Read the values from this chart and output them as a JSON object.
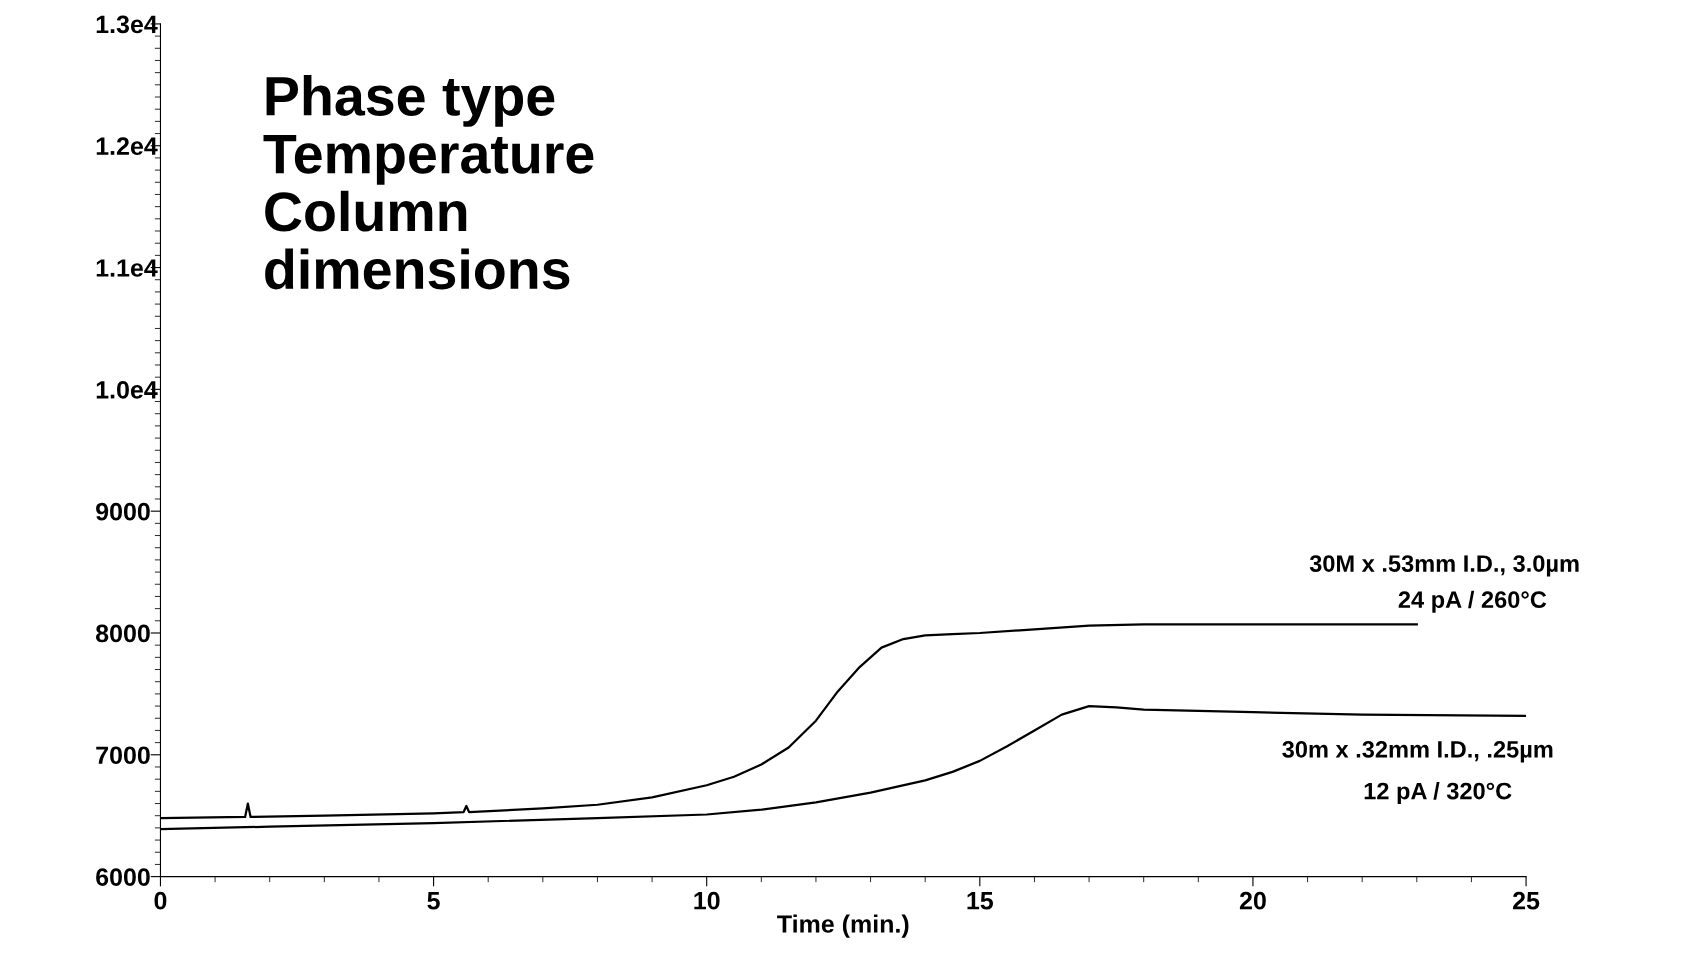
{
  "chart_data": {
    "type": "line",
    "xlabel": "Time (min.)",
    "xlim": [
      0,
      25
    ],
    "xticks": [
      0,
      5,
      10,
      15,
      20,
      25
    ],
    "ylim": [
      6000,
      13000
    ],
    "yticks": [
      6000,
      7000,
      8000,
      9000,
      {
        "value": 10000,
        "label": "1.0e4"
      },
      {
        "value": 11000,
        "label": "1.1e4"
      },
      {
        "value": 12000,
        "label": "1.2e4"
      },
      {
        "value": 13000,
        "label": "1.3e4"
      }
    ],
    "grid": false,
    "legend": false,
    "marker": "none",
    "line_style": "solid",
    "series": [
      {
        "name": "30M x .53mm I.D., 3.0µm",
        "color": "#000000",
        "x": [
          0,
          1.55,
          1.6,
          1.65,
          3,
          5,
          5.55,
          5.6,
          5.65,
          7,
          8,
          9,
          10,
          10.5,
          11,
          11.5,
          12,
          12.4,
          12.8,
          13.2,
          13.6,
          14,
          14.5,
          15,
          16,
          17,
          18,
          20,
          22,
          23
        ],
        "values": [
          6480,
          6490,
          6600,
          6490,
          6500,
          6520,
          6530,
          6580,
          6530,
          6560,
          6590,
          6650,
          6750,
          6820,
          6920,
          7060,
          7280,
          7520,
          7720,
          7880,
          7950,
          7980,
          7990,
          8000,
          8030,
          8060,
          8070,
          8070,
          8070,
          8070
        ]
      },
      {
        "name": "30m x .32mm I.D., .25µm",
        "color": "#000000",
        "x": [
          0,
          2,
          5,
          8,
          10,
          11,
          12,
          13,
          14,
          14.5,
          15,
          15.5,
          16,
          16.5,
          17,
          17.5,
          18,
          20,
          22,
          25
        ],
        "values": [
          6390,
          6410,
          6440,
          6480,
          6510,
          6550,
          6610,
          6690,
          6790,
          6860,
          6950,
          7070,
          7200,
          7330,
          7400,
          7390,
          7370,
          7350,
          7330,
          7320
        ]
      }
    ],
    "annotations": [
      "Phase type\nTemperature\nColumn\ndimensions",
      "24 pA / 260°C",
      "12 pA / 320°C"
    ]
  }
}
